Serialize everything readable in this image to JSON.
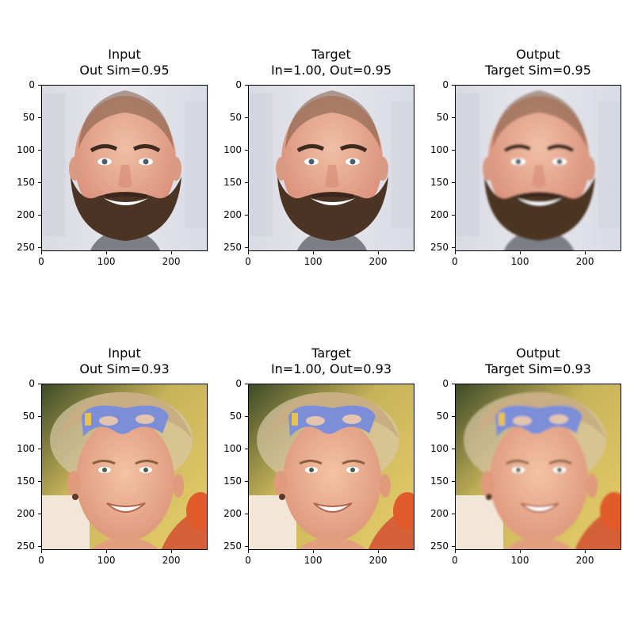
{
  "panels": [
    {
      "title": "Input\nOut Sim=0.95",
      "scene": "man"
    },
    {
      "title": "Target\nIn=1.00, Out=0.95",
      "scene": "man"
    },
    {
      "title": "Output\nTarget Sim=0.95",
      "scene": "man-smooth"
    },
    {
      "title": "Input\nOut Sim=0.93",
      "scene": "woman"
    },
    {
      "title": "Target\nIn=1.00, Out=0.93",
      "scene": "woman"
    },
    {
      "title": "Output\nTarget Sim=0.93",
      "scene": "woman-smooth"
    }
  ],
  "x_ticks": [
    "0",
    "100",
    "200"
  ],
  "y_ticks": [
    "0",
    "50",
    "100",
    "150",
    "200",
    "250"
  ]
}
